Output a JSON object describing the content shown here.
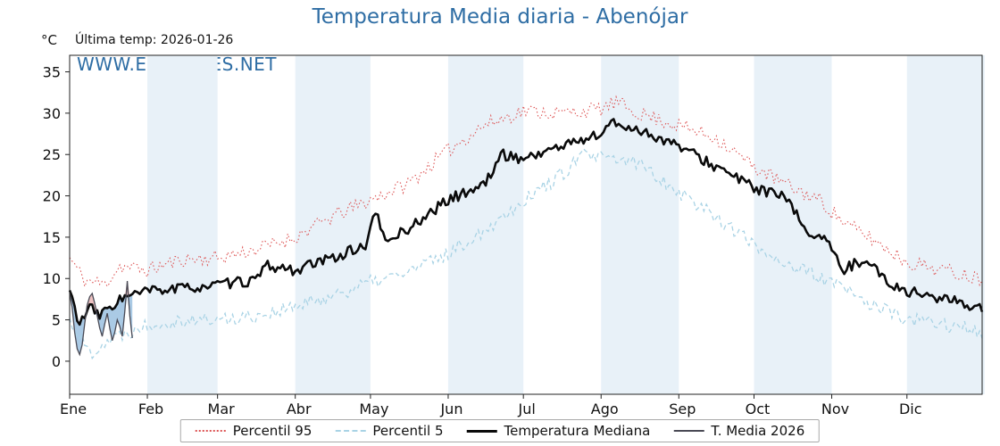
{
  "header": {
    "title": "Temperatura Media diaria - Abenójar",
    "unit_label": "°C",
    "last_temp_label": "Última temp: 2026-01-26",
    "watermark": "WWW.EMBALSES.NET"
  },
  "legend": {
    "items": [
      {
        "label": "Percentil 95",
        "style": "p95"
      },
      {
        "label": "Percentil 5",
        "style": "p5"
      },
      {
        "label": "Temperatura Mediana",
        "style": "median"
      },
      {
        "label": "T. Media 2026",
        "style": "t2026"
      }
    ]
  },
  "colors": {
    "title_blue": "#2e6da4",
    "p95": "#dd5555",
    "p5": "#a9d3e5",
    "median": "#0a0a0a",
    "t2026": "#4a4a55",
    "band": "#e8f1f8",
    "fill_above_median": "#e7a8a8",
    "fill_below_median": "#86b3da",
    "axis": "#222222"
  },
  "chart_data": {
    "type": "line",
    "title": "Temperatura Media diaria - Abenójar",
    "ylabel": "°C",
    "ylim": [
      -4,
      37
    ],
    "y_ticks": [
      0,
      5,
      10,
      15,
      20,
      25,
      30,
      35
    ],
    "x_months": [
      "Ene",
      "Feb",
      "Mar",
      "Abr",
      "May",
      "Jun",
      "Jul",
      "Ago",
      "Sep",
      "Oct",
      "Nov",
      "Dic"
    ],
    "month_start_days": [
      0,
      31,
      59,
      90,
      120,
      151,
      181,
      212,
      243,
      273,
      304,
      334
    ],
    "days_in_year": 365,
    "grid": false,
    "legend_position": "bottom",
    "series": [
      {
        "name": "Percentil 95",
        "style": "p95",
        "anchor_days": [
          0,
          6,
          14,
          20,
          31,
          45,
          59,
          74,
          90,
          105,
          120,
          135,
          151,
          165,
          181,
          196,
          212,
          218,
          227,
          243,
          258,
          273,
          288,
          299,
          310,
          319,
          334,
          349,
          364
        ],
        "anchor_values": [
          12.5,
          9.8,
          9.3,
          11.5,
          11.0,
          12.3,
          12.5,
          13.5,
          15.0,
          17.5,
          19.5,
          21.5,
          25.5,
          28.5,
          30.3,
          30.0,
          30.5,
          31.3,
          30.0,
          28.5,
          27.0,
          23.5,
          21.0,
          19.5,
          16.5,
          15.0,
          12.0,
          11.0,
          10.0
        ],
        "daily_noise": 0.9,
        "noise_seed": 11
      },
      {
        "name": "Percentil 5",
        "style": "p5",
        "anchor_days": [
          0,
          8,
          15,
          31,
          45,
          59,
          74,
          90,
          105,
          120,
          135,
          151,
          166,
          181,
          196,
          205,
          212,
          227,
          243,
          258,
          273,
          288,
          304,
          319,
          334,
          349,
          364
        ],
        "anchor_values": [
          5.0,
          1.0,
          2.5,
          4.5,
          5.0,
          5.0,
          5.5,
          6.5,
          8.0,
          9.5,
          10.8,
          13.0,
          16.0,
          19.5,
          22.5,
          25.0,
          24.5,
          24.0,
          20.5,
          17.5,
          14.0,
          11.5,
          9.5,
          7.0,
          5.0,
          4.5,
          3.5
        ],
        "daily_noise": 0.9,
        "noise_seed": 22
      },
      {
        "name": "Temperatura Mediana",
        "style": "median",
        "anchor_days": [
          0,
          4,
          8,
          12,
          20,
          31,
          45,
          59,
          74,
          79,
          90,
          105,
          118,
          122,
          126,
          135,
          151,
          166,
          172,
          181,
          196,
          212,
          216,
          227,
          243,
          258,
          273,
          285,
          295,
          301,
          308,
          318,
          326,
          334,
          349,
          364
        ],
        "anchor_values": [
          8.5,
          4.5,
          6.5,
          5.5,
          7.5,
          8.5,
          8.8,
          9.2,
          9.8,
          11.5,
          11.0,
          12.5,
          14.0,
          18.0,
          14.5,
          16.0,
          19.5,
          21.5,
          25.0,
          24.5,
          26.0,
          27.5,
          28.8,
          28.0,
          26.0,
          23.5,
          21.0,
          19.8,
          15.5,
          15.0,
          11.0,
          12.5,
          9.5,
          8.5,
          7.5,
          6.5
        ],
        "daily_noise": 0.65,
        "noise_seed": 33
      },
      {
        "name": "T. Media 2026",
        "style": "t2026",
        "days": [
          0,
          1,
          2,
          3,
          4,
          5,
          6,
          7,
          8,
          9,
          10,
          11,
          12,
          13,
          14,
          15,
          16,
          17,
          18,
          19,
          20,
          21,
          22,
          23,
          24,
          25
        ],
        "values": [
          8.3,
          6.5,
          3.5,
          1.5,
          0.8,
          2.0,
          4.5,
          6.8,
          7.8,
          8.2,
          7.0,
          5.5,
          4.0,
          3.0,
          4.5,
          5.8,
          4.0,
          2.5,
          3.5,
          5.0,
          4.2,
          3.0,
          6.0,
          9.7,
          5.5,
          2.8
        ]
      }
    ]
  }
}
